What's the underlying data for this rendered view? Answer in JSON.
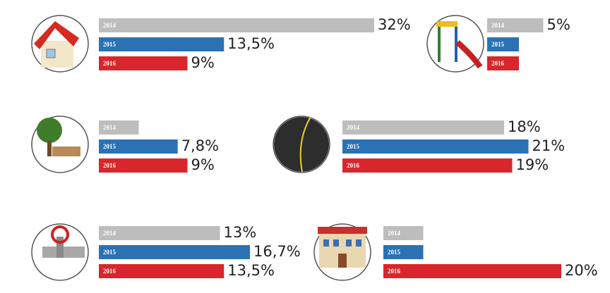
{
  "chart_data": [
    {
      "type": "bar",
      "categories": [
        "2014",
        "2015",
        "2016"
      ],
      "values": [
        32,
        13.5,
        9
      ],
      "value_labels": [
        "32%",
        "13,5%",
        "9%"
      ],
      "colors": [
        "#bdbdbd",
        "#2b72b4",
        "#d8262c"
      ]
    },
    {
      "type": "bar",
      "categories": [
        "2014",
        "2015",
        "2016"
      ],
      "values": [
        5,
        2,
        2
      ],
      "value_labels": [
        "5%",
        null,
        null
      ],
      "colors": [
        "#bdbdbd",
        "#2b72b4",
        "#d8262c"
      ]
    },
    {
      "type": "bar",
      "categories": [
        "2014",
        "2015",
        "2016"
      ],
      "values": [
        3,
        7.8,
        9
      ],
      "value_labels": [
        null,
        "7,8%",
        "9%"
      ],
      "colors": [
        "#bdbdbd",
        "#2b72b4",
        "#d8262c"
      ]
    },
    {
      "type": "bar",
      "categories": [
        "2014",
        "2015",
        "2016"
      ],
      "values": [
        18,
        21,
        19
      ],
      "value_labels": [
        "18%",
        "21%",
        "19%"
      ],
      "colors": [
        "#bdbdbd",
        "#2b72b4",
        "#d8262c"
      ]
    },
    {
      "type": "bar",
      "categories": [
        "2014",
        "2015",
        "2016"
      ],
      "values": [
        13,
        16.7,
        13.5
      ],
      "value_labels": [
        "13%",
        "16,7%",
        "13,5%"
      ],
      "colors": [
        "#bdbdbd",
        "#2b72b4",
        "#d8262c"
      ]
    },
    {
      "type": "bar",
      "categories": [
        "2014",
        "2015",
        "2016"
      ],
      "values": [
        3,
        3,
        20
      ],
      "value_labels": [
        null,
        null,
        "20%"
      ],
      "colors": [
        "#bdbdbd",
        "#2b72b4",
        "#d8262c"
      ]
    }
  ]
}
